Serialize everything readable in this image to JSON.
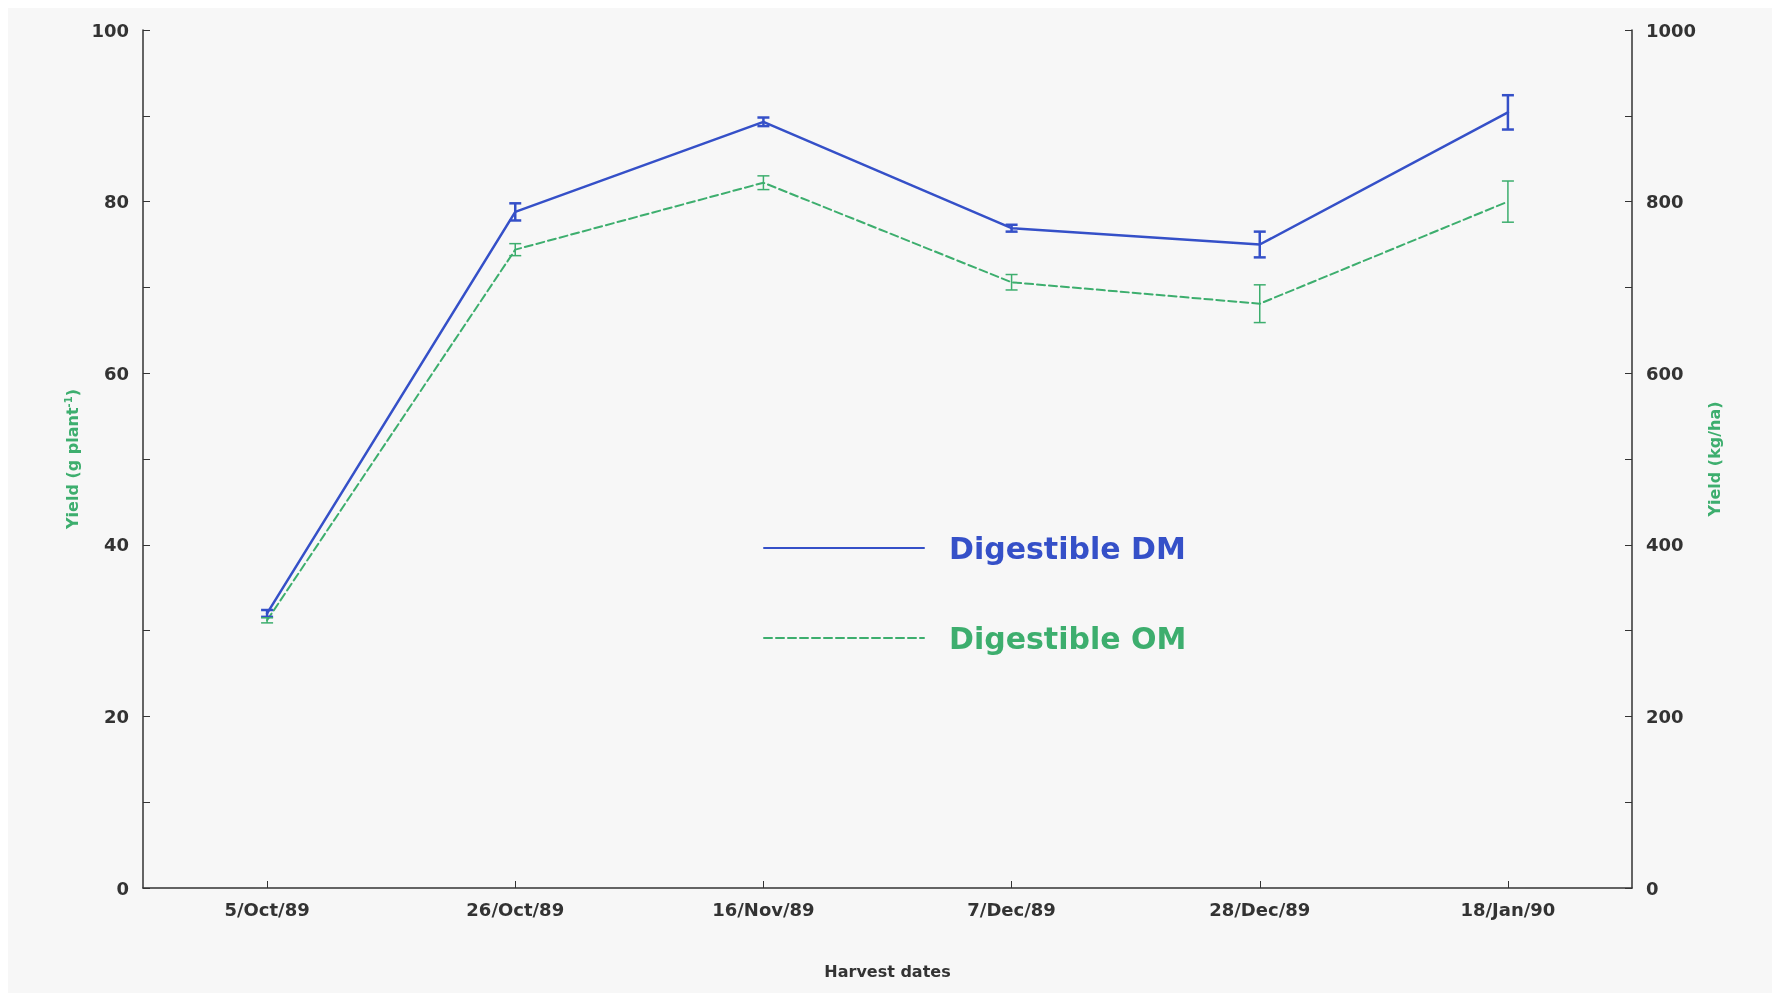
{
  "chart_data": {
    "type": "line",
    "xlabel": "Harvest dates",
    "ylabel": "Yield (g plant$^{-1}$)",
    "y2label": "Yield (kg/ha)",
    "categories": [
      "5/Oct/89",
      "26/Oct/89",
      "16/Nov/89",
      "7/Dec/89",
      "28/Dec/89",
      "18/Jan/90"
    ],
    "series": [
      {
        "name": "Digestible DM",
        "color": "#3550c8",
        "line_style": "solid",
        "values": [
          32,
          78.8,
          89.3,
          76.9,
          75.0,
          90.4
        ],
        "errors": [
          0.4,
          1.0,
          0.5,
          0.4,
          1.5,
          2.0
        ]
      },
      {
        "name": "Digestible OM",
        "color": "#3dae6e",
        "line_style": "dashed",
        "values": [
          31.2,
          74.4,
          82.2,
          70.6,
          68.1,
          80.0
        ],
        "errors": [
          0.3,
          0.7,
          0.8,
          0.9,
          2.2,
          2.4
        ]
      }
    ],
    "ylim": [
      0,
      100
    ],
    "yticks": [
      0,
      {
        "value": 10,
        "label": null
      },
      20,
      {
        "value": 30,
        "label": null
      },
      40,
      {
        "value": 50,
        "label": null
      },
      60,
      {
        "value": 70,
        "label": null
      },
      80,
      {
        "value": 90,
        "label": null
      },
      100
    ],
    "y2lim": [
      0,
      1000
    ],
    "y2ticks": [
      0,
      {
        "value": 100,
        "label": null
      },
      200,
      {
        "value": 300,
        "label": null
      },
      400,
      {
        "value": 500,
        "label": null
      },
      600,
      {
        "value": 700,
        "label": null
      },
      800,
      {
        "value": 900,
        "label": null
      },
      1000
    ],
    "grid": false,
    "legend": "center",
    "marker": "none"
  }
}
